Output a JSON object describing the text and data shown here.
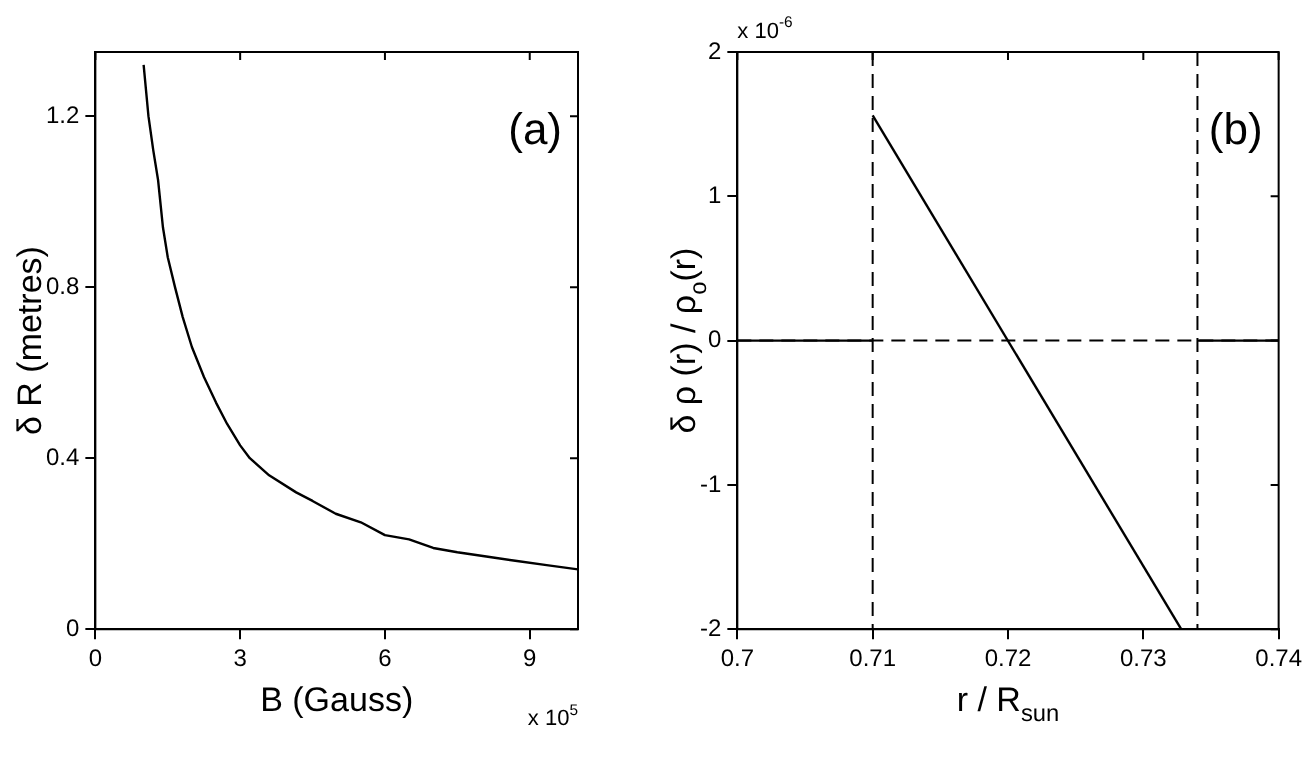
{
  "chart_data": [
    {
      "type": "line",
      "xlabel": "B (Gauss)",
      "ylabel": "δ R (metres)",
      "annotations": [
        "(a)",
        "x 10$^{5}$"
      ],
      "series": [
        {
          "color": "#000000",
          "x": [
            1.0,
            1.1,
            1.2,
            1.3,
            1.4,
            1.5,
            1.65,
            1.81,
            2.0,
            2.25,
            2.5,
            2.73,
            3.0,
            3.2,
            3.6,
            4.16,
            4.5,
            4.98,
            5.5,
            6.0,
            6.5,
            7.0,
            7.5,
            8.1,
            8.7,
            9.35,
            10
          ],
          "values": [
            1.32,
            1.2,
            1.12,
            1.05,
            0.94,
            0.87,
            0.8,
            0.73,
            0.66,
            0.59,
            0.53,
            0.48,
            0.43,
            0.4,
            0.36,
            0.32,
            0.3,
            0.27,
            0.25,
            0.22,
            0.21,
            0.19,
            0.18,
            0.17,
            0.16,
            0.15,
            0.14
          ]
        }
      ],
      "xlim": [
        0,
        10
      ],
      "xticks": [
        0,
        3,
        6,
        9
      ],
      "ylim": [
        0,
        1.35
      ],
      "yticks": [
        0,
        0.4,
        0.8,
        1.2
      ],
      "grid": false,
      "legend": false,
      "marker": "none",
      "line_style": "solid"
    },
    {
      "type": "line",
      "xlabel": "r / R$_{sun}$",
      "ylabel": "δ ρ (r) / ρ$_{o}$(r)",
      "annotations": [
        "(b)",
        "x 10$^{-6}$"
      ],
      "series": [
        {
          "color": "#000000",
          "x": [
            0.7,
            0.71
          ],
          "values": [
            0,
            0
          ]
        },
        {
          "color": "#000000",
          "x": [
            0.71,
            0.7328
          ],
          "values": [
            1.56,
            -2
          ]
        },
        {
          "color": "#000000",
          "x": [
            0.734,
            0.74
          ],
          "values": [
            0,
            0
          ]
        }
      ],
      "ref_lines": [
        {
          "axis": "x",
          "value": 0.71,
          "color": "#000000",
          "line_style": "dashed"
        },
        {
          "axis": "x",
          "value": 0.734,
          "color": "#000000",
          "line_style": "dashed"
        },
        {
          "axis": "y",
          "value": 0,
          "color": "#000000",
          "line_style": "dashed"
        }
      ],
      "xlim": [
        0.7,
        0.74
      ],
      "xticks": [
        0.7,
        0.71,
        0.72,
        0.73,
        0.74
      ],
      "ylim": [
        -2,
        2
      ],
      "yticks": [
        -2,
        -1,
        0,
        1,
        2
      ],
      "grid": false,
      "legend": false,
      "marker": "none",
      "line_style": "solid"
    }
  ]
}
